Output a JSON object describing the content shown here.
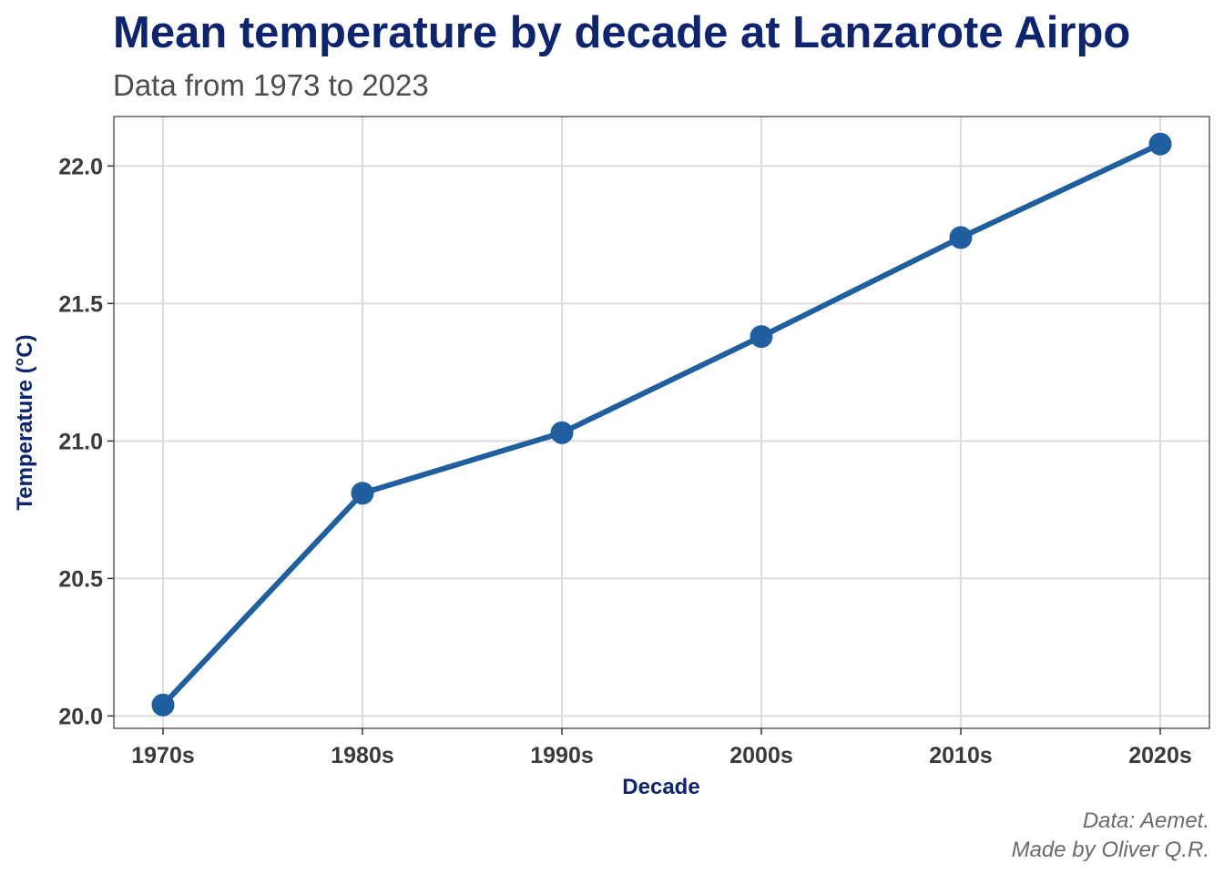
{
  "chart_data": {
    "type": "line",
    "title": "Mean temperature by decade at Lanzarote Airpo",
    "subtitle": "Data from 1973 to 2023",
    "xlabel": "Decade",
    "ylabel": "Temperature (°C)",
    "categories": [
      "1970s",
      "1980s",
      "1990s",
      "2000s",
      "2010s",
      "2020s"
    ],
    "series": [
      {
        "values": [
          20.04,
          20.81,
          21.03,
          21.38,
          21.74,
          22.08
        ]
      }
    ],
    "ylim": [
      19.955,
      22.18
    ],
    "yticks": [
      20.0,
      20.5,
      21.0,
      21.5,
      22.0
    ],
    "ytick_labels": [
      "20.0",
      "20.5",
      "21.0",
      "21.5",
      "22.0"
    ],
    "grid": true,
    "legend": "none",
    "colors": {
      "line": "#1f5fa0",
      "title": "#0d2470",
      "grid": "#dcdcdc"
    }
  },
  "caption": {
    "line1": "Data: Aemet.",
    "line2": "Made by Oliver Q.R."
  }
}
